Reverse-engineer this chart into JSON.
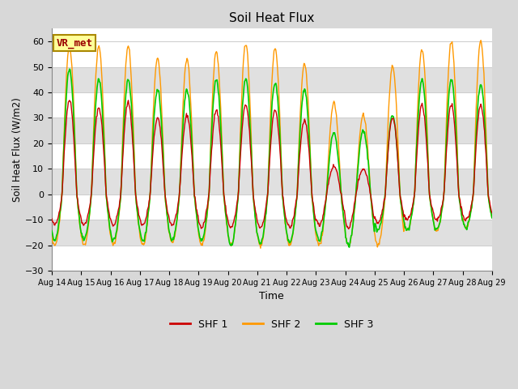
{
  "title": "Soil Heat Flux",
  "ylabel": "Soil Heat Flux (W/m2)",
  "xlabel": "Time",
  "ylim": [
    -30,
    65
  ],
  "yticks": [
    -30,
    -20,
    -10,
    0,
    10,
    20,
    30,
    40,
    50,
    60
  ],
  "start_day": 14,
  "end_day": 29,
  "colors": {
    "SHF 1": "#cc0000",
    "SHF 2": "#ff9900",
    "SHF 3": "#00cc00"
  },
  "fig_bg_color": "#d8d8d8",
  "plot_bg_color": "#ffffff",
  "band_color": "#e0e0e0",
  "annotation_label": "VR_met",
  "annotation_text_color": "#990000",
  "annotation_bg": "#ffff99",
  "annotation_edge": "#aa8800",
  "legend_labels": [
    "SHF 1",
    "SHF 2",
    "SHF 3"
  ],
  "grid_color": "#cccccc",
  "num_days": 15,
  "peaks_shf2": [
    58,
    58,
    58,
    53,
    53,
    56,
    59,
    57,
    51,
    36,
    31,
    50,
    57,
    60,
    60
  ],
  "peaks_shf3": [
    49,
    45,
    45,
    41,
    41,
    45,
    45,
    44,
    41,
    24,
    25,
    31,
    45,
    45,
    43
  ],
  "peaks_shf1": [
    37,
    34,
    36,
    30,
    31,
    33,
    35,
    33,
    29,
    11,
    10,
    30,
    35,
    35,
    35
  ],
  "troughs_shf2": [
    -20,
    -20,
    -20,
    -20,
    -19,
    -20,
    -20,
    -20,
    -20,
    -20,
    -20,
    -20,
    -14,
    -14,
    -13
  ],
  "troughs_shf3": [
    -18,
    -18,
    -18,
    -18,
    -18,
    -18,
    -20,
    -19,
    -19,
    -18,
    -20,
    -14,
    -14,
    -14,
    -13
  ],
  "troughs_shf1": [
    -12,
    -12,
    -12,
    -12,
    -12,
    -13,
    -13,
    -13,
    -13,
    -12,
    -13,
    -11,
    -10,
    -10,
    -10
  ]
}
